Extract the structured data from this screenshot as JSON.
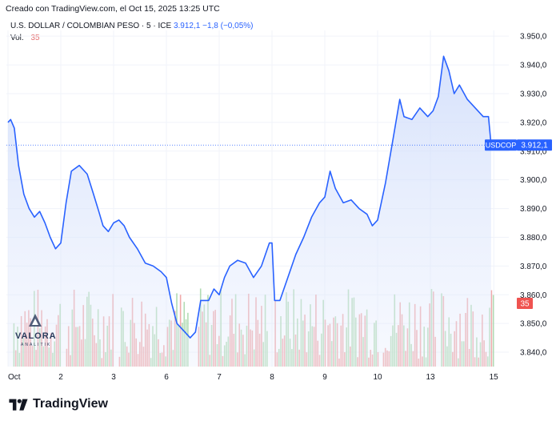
{
  "caption": "Creado con TradingView.com, el Oct 15, 2025 13:25 UTC",
  "legend": {
    "symbol": "U.S. DOLLAR / COLOMBIAN PESO · 5 · ICE",
    "last": "3.912,1",
    "change": "−1,8 (−0,05%)",
    "vol_label": "Vol.",
    "vol_value": "35"
  },
  "watermark": {
    "text": "VALORA",
    "sub": "ANALITIK"
  },
  "footer": {
    "brand": "TradingView"
  },
  "colors": {
    "line": "#2962ff",
    "area": "#dbe5fd",
    "vol_up": "#a5d6a7",
    "vol_down": "#ef9a9a",
    "price_tag": "#2962ff",
    "vol_tag": "#ef5350"
  },
  "chart_data": {
    "type": "line",
    "title": "U.S. DOLLAR / COLOMBIAN PESO · 5 · ICE",
    "y_axis": {
      "min": 3835,
      "max": 3952,
      "ticks": [
        3840,
        3850,
        3860,
        3870,
        3880,
        3890,
        3900,
        3910,
        3920,
        3930,
        3940,
        3950
      ],
      "tick_labels": [
        "3.840,0",
        "3.850,0",
        "3.860,0",
        "3.870,0",
        "3.880,0",
        "3.890,0",
        "3.900,0",
        "3.910,0",
        "3.920,0",
        "3.930,0",
        "3.940,0",
        "3.950,0"
      ]
    },
    "x_axis": {
      "labels": [
        "Oct",
        "2",
        "3",
        "6",
        "7",
        "8",
        "9",
        "10",
        "13",
        "15"
      ],
      "positions": [
        0,
        1,
        2,
        3,
        4,
        5,
        6,
        7,
        8,
        9.2
      ]
    },
    "last_price": {
      "symbol": "USDCOP",
      "value": 3912.1,
      "label": "3.912,1"
    },
    "volume_last": {
      "value": 35,
      "label": "35"
    },
    "series": [
      {
        "values": [
          [
            0,
            3920
          ],
          [
            0.05,
            3921
          ],
          [
            0.12,
            3918
          ],
          [
            0.2,
            3905
          ],
          [
            0.3,
            3895
          ],
          [
            0.4,
            3890
          ],
          [
            0.5,
            3887
          ],
          [
            0.6,
            3889
          ],
          [
            0.7,
            3885
          ],
          [
            0.8,
            3880
          ],
          [
            0.9,
            3876
          ],
          [
            1.0,
            3878
          ],
          [
            1.1,
            3892
          ],
          [
            1.2,
            3903
          ],
          [
            1.35,
            3905
          ],
          [
            1.5,
            3902
          ],
          [
            1.62,
            3895
          ],
          [
            1.72,
            3889
          ],
          [
            1.8,
            3884
          ],
          [
            1.9,
            3882
          ],
          [
            2.0,
            3885
          ],
          [
            2.1,
            3886
          ],
          [
            2.2,
            3884
          ],
          [
            2.3,
            3880
          ],
          [
            2.45,
            3876
          ],
          [
            2.6,
            3871
          ],
          [
            2.75,
            3870
          ],
          [
            2.9,
            3868
          ],
          [
            3.0,
            3866
          ],
          [
            3.1,
            3857
          ],
          [
            3.2,
            3850
          ],
          [
            3.3,
            3848
          ],
          [
            3.45,
            3845
          ],
          [
            3.55,
            3847
          ],
          [
            3.65,
            3858
          ],
          [
            3.8,
            3858
          ],
          [
            3.9,
            3862
          ],
          [
            4.0,
            3860
          ],
          [
            4.1,
            3866
          ],
          [
            4.2,
            3870
          ],
          [
            4.35,
            3872
          ],
          [
            4.5,
            3871
          ],
          [
            4.65,
            3866
          ],
          [
            4.8,
            3870
          ],
          [
            4.95,
            3878
          ],
          [
            5.0,
            3878
          ],
          [
            5.05,
            3858
          ],
          [
            5.15,
            3858
          ],
          [
            5.3,
            3866
          ],
          [
            5.45,
            3874
          ],
          [
            5.6,
            3880
          ],
          [
            5.75,
            3887
          ],
          [
            5.9,
            3892
          ],
          [
            6.0,
            3894
          ],
          [
            6.1,
            3903
          ],
          [
            6.2,
            3897
          ],
          [
            6.35,
            3892
          ],
          [
            6.5,
            3893
          ],
          [
            6.65,
            3890
          ],
          [
            6.8,
            3888
          ],
          [
            6.9,
            3884
          ],
          [
            7.0,
            3886
          ],
          [
            7.15,
            3899
          ],
          [
            7.3,
            3915
          ],
          [
            7.42,
            3928
          ],
          [
            7.5,
            3922
          ],
          [
            7.65,
            3921
          ],
          [
            7.8,
            3925
          ],
          [
            7.95,
            3922
          ],
          [
            8.05,
            3924
          ],
          [
            8.15,
            3929
          ],
          [
            8.25,
            3943
          ],
          [
            8.35,
            3938
          ],
          [
            8.45,
            3930
          ],
          [
            8.55,
            3933
          ],
          [
            8.7,
            3928
          ],
          [
            8.85,
            3925
          ],
          [
            9.0,
            3922
          ],
          [
            9.1,
            3922
          ],
          [
            9.15,
            3912.1
          ]
        ]
      }
    ]
  }
}
